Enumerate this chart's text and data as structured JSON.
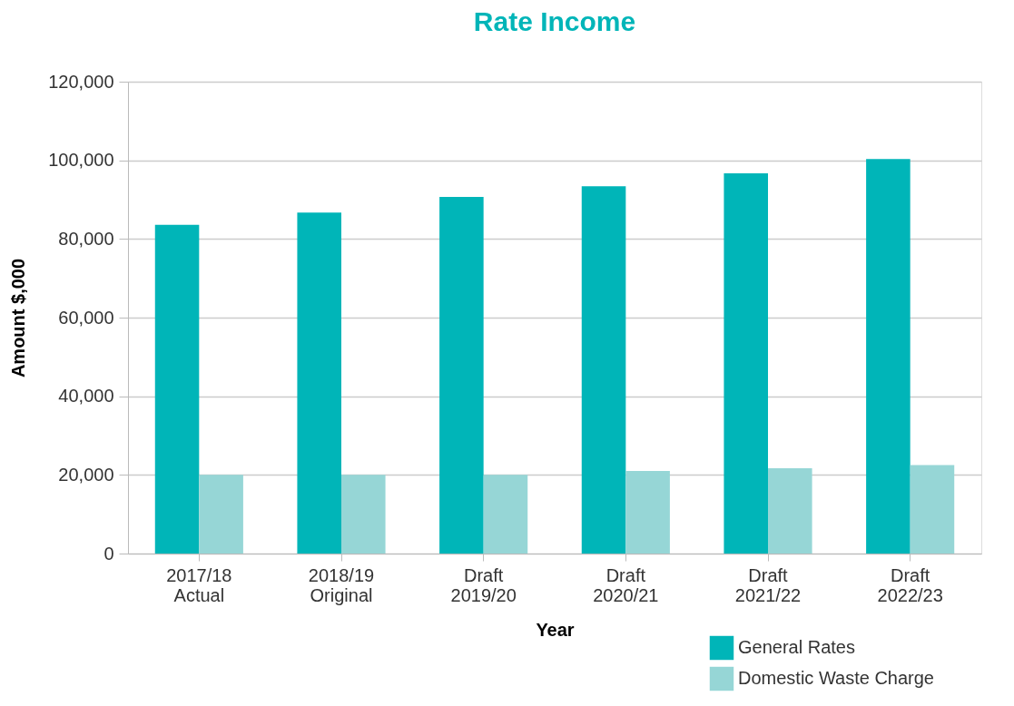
{
  "chart_data": {
    "type": "bar",
    "title": "Rate Income",
    "xlabel": "Year",
    "ylabel": "Amount $,000",
    "categories": [
      "2017/18\nActual",
      "2018/19\nOriginal",
      "Draft\n2019/20",
      "Draft\n2020/21",
      "Draft\n2021/22",
      "Draft\n2022/23"
    ],
    "series": [
      {
        "name": "General Rates",
        "color": "#00b5b8",
        "values": [
          83600,
          86700,
          90700,
          93400,
          96700,
          100300
        ]
      },
      {
        "name": "Domestic Waste Charge",
        "color": "#96d6d6",
        "values": [
          20000,
          20000,
          20000,
          21000,
          21700,
          22500
        ]
      }
    ],
    "ylim": [
      0,
      120000
    ],
    "yticks": [
      {
        "value": 0,
        "label": "0"
      },
      {
        "value": 20000,
        "label": "20,000"
      },
      {
        "value": 40000,
        "label": "40,000"
      },
      {
        "value": 60000,
        "label": "60,000"
      },
      {
        "value": 80000,
        "label": "80,000"
      },
      {
        "value": 100000,
        "label": "100,000"
      },
      {
        "value": 120000,
        "label": "120,000"
      }
    ],
    "grid": "y",
    "legend": "bottom right"
  }
}
